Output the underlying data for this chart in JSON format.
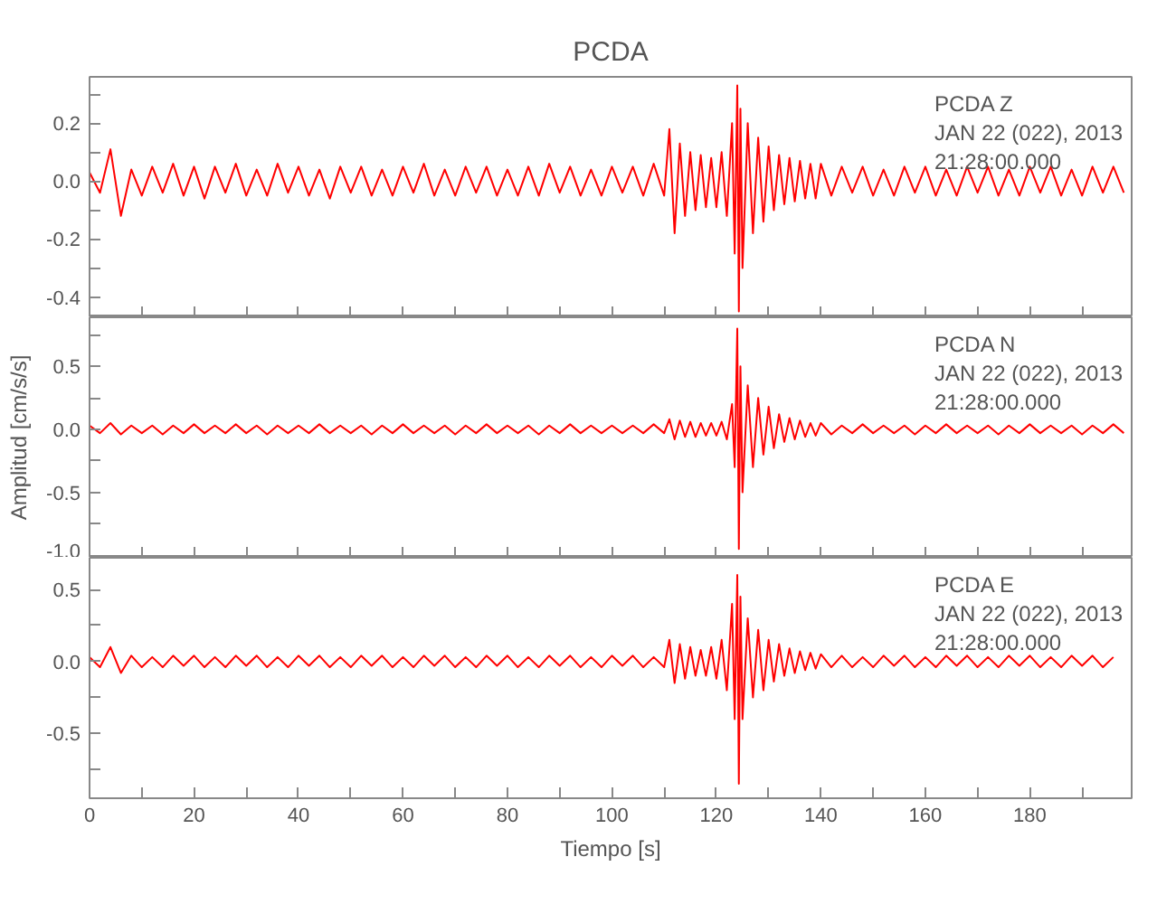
{
  "chart_data": [
    {
      "type": "line",
      "title": "PCDA",
      "x": [
        0,
        2,
        4,
        6,
        8,
        10,
        12,
        14,
        16,
        18,
        20,
        22,
        24,
        26,
        28,
        30,
        32,
        34,
        36,
        38,
        40,
        42,
        44,
        46,
        48,
        50,
        52,
        54,
        56,
        58,
        60,
        62,
        64,
        66,
        68,
        70,
        72,
        74,
        76,
        78,
        80,
        82,
        84,
        86,
        88,
        90,
        92,
        94,
        96,
        98,
        100,
        102,
        104,
        106,
        108,
        110,
        111,
        112,
        113,
        114,
        115,
        116,
        117,
        118,
        119,
        120,
        121,
        122,
        123,
        123.5,
        124,
        124.3,
        124.6,
        125,
        126,
        127,
        128,
        129,
        130,
        131,
        132,
        133,
        134,
        135,
        136,
        137,
        138,
        139,
        140,
        142,
        144,
        146,
        148,
        150,
        152,
        154,
        156,
        158,
        160,
        162,
        164,
        166,
        168,
        170,
        172,
        174,
        176,
        178,
        180,
        182,
        184,
        186,
        188,
        190,
        192,
        194,
        196,
        198
      ],
      "series": [
        {
          "color": "#ff0000",
          "values": [
            0.03,
            -0.04,
            0.11,
            -0.12,
            0.04,
            -0.05,
            0.05,
            -0.04,
            0.06,
            -0.05,
            0.05,
            -0.06,
            0.05,
            -0.04,
            0.06,
            -0.05,
            0.04,
            -0.05,
            0.06,
            -0.04,
            0.05,
            -0.05,
            0.04,
            -0.06,
            0.05,
            -0.04,
            0.05,
            -0.05,
            0.04,
            -0.05,
            0.05,
            -0.04,
            0.06,
            -0.05,
            0.04,
            -0.05,
            0.05,
            -0.04,
            0.05,
            -0.05,
            0.04,
            -0.05,
            0.05,
            -0.05,
            0.06,
            -0.04,
            0.05,
            -0.05,
            0.04,
            -0.05,
            0.05,
            -0.04,
            0.05,
            -0.05,
            0.06,
            -0.05,
            0.18,
            -0.18,
            0.13,
            -0.12,
            0.1,
            -0.1,
            0.09,
            -0.09,
            0.08,
            -0.09,
            0.1,
            -0.12,
            0.2,
            -0.25,
            0.33,
            -0.45,
            0.25,
            -0.3,
            0.2,
            -0.18,
            0.15,
            -0.14,
            0.12,
            -0.1,
            0.09,
            -0.08,
            0.08,
            -0.07,
            0.07,
            -0.06,
            0.06,
            -0.06,
            0.06,
            -0.05,
            0.05,
            -0.04,
            0.05,
            -0.05,
            0.04,
            -0.05,
            0.05,
            -0.04,
            0.05,
            -0.05,
            0.04,
            -0.05,
            0.05,
            -0.04,
            0.05,
            -0.05,
            0.04,
            -0.05,
            0.05,
            -0.04,
            0.05,
            -0.05,
            0.04,
            -0.05,
            0.05,
            -0.04,
            0.05,
            -0.04
          ]
        }
      ],
      "xlim": [
        0,
        199.5
      ],
      "xticks": [
        0,
        {
          "value": 10,
          "label": null
        },
        20,
        {
          "value": 30,
          "label": null
        },
        40,
        {
          "value": 50,
          "label": null
        },
        60,
        {
          "value": 70,
          "label": null
        },
        80,
        {
          "value": 90,
          "label": null
        },
        100,
        {
          "value": 110,
          "label": null
        },
        120,
        {
          "value": 130,
          "label": null
        },
        140,
        {
          "value": 150,
          "label": null
        },
        160,
        {
          "value": 170,
          "label": null
        },
        180,
        {
          "value": 190,
          "label": null
        }
      ],
      "ylim": [
        -0.47,
        0.36
      ],
      "yticks": [
        -0.4,
        {
          "value": -0.3,
          "label": null
        },
        -0.2,
        {
          "value": -0.1,
          "label": null
        },
        {
          "value": 0,
          "label": "0.0"
        },
        {
          "value": 0.1,
          "label": null
        },
        0.2,
        {
          "value": 0.3,
          "label": null
        }
      ],
      "tick_labels": "y",
      "annotations": [
        "PCDA   Z",
        "JAN 22 (022), 2013",
        "21:28:00.000"
      ]
    },
    {
      "type": "line",
      "ylabel": "Amplitud [cm/s/s]",
      "x": [
        0,
        2,
        4,
        6,
        8,
        10,
        12,
        14,
        16,
        18,
        20,
        22,
        24,
        26,
        28,
        30,
        32,
        34,
        36,
        38,
        40,
        42,
        44,
        46,
        48,
        50,
        52,
        54,
        56,
        58,
        60,
        62,
        64,
        66,
        68,
        70,
        72,
        74,
        76,
        78,
        80,
        82,
        84,
        86,
        88,
        90,
        92,
        94,
        96,
        98,
        100,
        102,
        104,
        106,
        108,
        110,
        111,
        112,
        113,
        114,
        115,
        116,
        117,
        118,
        119,
        120,
        121,
        122,
        123,
        123.5,
        124,
        124.3,
        124.6,
        125,
        126,
        127,
        128,
        129,
        130,
        131,
        132,
        133,
        134,
        135,
        136,
        137,
        138,
        139,
        140,
        142,
        144,
        146,
        148,
        150,
        152,
        154,
        156,
        158,
        160,
        162,
        164,
        166,
        168,
        170,
        172,
        174,
        176,
        178,
        180,
        182,
        184,
        186,
        188,
        190,
        192,
        194,
        196,
        198
      ],
      "series": [
        {
          "color": "#ff0000",
          "values": [
            0.03,
            -0.03,
            0.05,
            -0.04,
            0.03,
            -0.03,
            0.03,
            -0.04,
            0.03,
            -0.03,
            0.04,
            -0.03,
            0.03,
            -0.03,
            0.04,
            -0.03,
            0.03,
            -0.04,
            0.03,
            -0.03,
            0.03,
            -0.03,
            0.04,
            -0.03,
            0.03,
            -0.03,
            0.03,
            -0.04,
            0.03,
            -0.03,
            0.04,
            -0.03,
            0.03,
            -0.03,
            0.03,
            -0.04,
            0.03,
            -0.03,
            0.04,
            -0.03,
            0.03,
            -0.03,
            0.03,
            -0.04,
            0.03,
            -0.03,
            0.04,
            -0.03,
            0.03,
            -0.03,
            0.03,
            -0.03,
            0.03,
            -0.03,
            0.04,
            -0.03,
            0.08,
            -0.08,
            0.07,
            -0.06,
            0.06,
            -0.06,
            0.05,
            -0.05,
            0.05,
            -0.05,
            0.06,
            -0.08,
            0.2,
            -0.3,
            0.8,
            -0.95,
            0.5,
            -0.5,
            0.35,
            -0.3,
            0.25,
            -0.2,
            0.18,
            -0.15,
            0.12,
            -0.1,
            0.09,
            -0.08,
            0.07,
            -0.06,
            0.05,
            -0.05,
            0.05,
            -0.04,
            0.03,
            -0.03,
            0.04,
            -0.03,
            0.03,
            -0.03,
            0.03,
            -0.04,
            0.03,
            -0.03,
            0.04,
            -0.03,
            0.03,
            -0.03,
            0.03,
            -0.04,
            0.03,
            -0.03,
            0.04,
            -0.03,
            0.03,
            -0.03,
            0.03,
            -0.04,
            0.03,
            -0.03,
            0.04,
            -0.03
          ]
        }
      ],
      "xlim": [
        0,
        199.5
      ],
      "xticks": [
        0,
        {
          "value": 10,
          "label": null
        },
        20,
        {
          "value": 30,
          "label": null
        },
        40,
        {
          "value": 50,
          "label": null
        },
        60,
        {
          "value": 70,
          "label": null
        },
        80,
        {
          "value": 90,
          "label": null
        },
        100,
        {
          "value": 110,
          "label": null
        },
        120,
        {
          "value": 130,
          "label": null
        },
        140,
        {
          "value": 150,
          "label": null
        },
        160,
        {
          "value": 170,
          "label": null
        },
        180,
        {
          "value": 190,
          "label": null
        }
      ],
      "ylim": [
        -1.02,
        0.89
      ],
      "yticks": [
        {
          "value": -1,
          "label": "-1.0"
        },
        {
          "value": -0.75,
          "label": null
        },
        -0.5,
        {
          "value": -0.25,
          "label": null
        },
        {
          "value": 0,
          "label": "0.0"
        },
        {
          "value": 0.25,
          "label": null
        },
        0.5,
        {
          "value": 0.75,
          "label": null
        }
      ],
      "tick_labels": "y",
      "annotations": [
        "PCDA   N",
        "JAN 22 (022), 2013",
        "21:28:00.000"
      ]
    },
    {
      "type": "line",
      "xlabel": "Tiempo [s]",
      "series": [
        {
          "color": "#ff0000",
          "x": [
            0,
            2,
            4,
            6,
            8,
            10,
            12,
            14,
            16,
            18,
            20,
            22,
            24,
            26,
            28,
            30,
            32,
            34,
            36,
            38,
            40,
            42,
            44,
            46,
            48,
            50,
            52,
            54,
            56,
            58,
            60,
            62,
            64,
            66,
            68,
            70,
            72,
            74,
            76,
            78,
            80,
            82,
            84,
            86,
            88,
            90,
            92,
            94,
            96,
            98,
            100,
            102,
            104,
            106,
            108,
            110,
            111,
            112,
            113,
            114,
            115,
            116,
            117,
            118,
            119,
            120,
            121,
            122,
            123,
            123.5,
            124,
            124.3,
            124.6,
            125,
            126,
            127,
            128,
            129,
            130,
            131,
            132,
            133,
            134,
            135,
            136,
            137,
            138,
            139,
            140,
            142,
            144,
            146,
            148,
            150,
            152,
            154,
            156,
            158,
            160,
            162,
            164,
            166,
            168,
            170,
            172,
            174,
            176,
            178,
            180,
            182,
            184,
            186,
            188,
            190,
            192,
            194,
            196
          ],
          "values": [
            0.03,
            -0.04,
            0.1,
            -0.08,
            0.04,
            -0.04,
            0.03,
            -0.04,
            0.04,
            -0.03,
            0.04,
            -0.04,
            0.03,
            -0.04,
            0.04,
            -0.03,
            0.04,
            -0.04,
            0.03,
            -0.04,
            0.04,
            -0.03,
            0.04,
            -0.04,
            0.03,
            -0.04,
            0.04,
            -0.03,
            0.04,
            -0.04,
            0.03,
            -0.04,
            0.04,
            -0.03,
            0.04,
            -0.04,
            0.03,
            -0.04,
            0.04,
            -0.03,
            0.04,
            -0.04,
            0.03,
            -0.04,
            0.04,
            -0.03,
            0.04,
            -0.04,
            0.03,
            -0.04,
            0.04,
            -0.03,
            0.04,
            -0.04,
            0.03,
            -0.04,
            0.15,
            -0.15,
            0.12,
            -0.12,
            0.1,
            -0.1,
            0.08,
            -0.1,
            0.1,
            -0.12,
            0.15,
            -0.2,
            0.4,
            -0.4,
            0.6,
            -0.85,
            0.45,
            -0.4,
            0.3,
            -0.25,
            0.22,
            -0.2,
            0.15,
            -0.14,
            0.12,
            -0.1,
            0.09,
            -0.08,
            0.07,
            -0.06,
            0.06,
            -0.05,
            0.05,
            -0.04,
            0.04,
            -0.04,
            0.03,
            -0.04,
            0.04,
            -0.03,
            0.04,
            -0.04,
            0.03,
            -0.04,
            0.04,
            -0.03,
            0.04,
            -0.04,
            0.03,
            -0.04,
            0.04,
            -0.03,
            0.04,
            -0.04,
            0.03,
            -0.04,
            0.04,
            -0.03,
            0.04,
            -0.04,
            0.03
          ]
        }
      ],
      "xlim": [
        0,
        199.5
      ],
      "xticks": [
        0,
        {
          "value": 10,
          "label": null
        },
        20,
        {
          "value": 30,
          "label": null
        },
        40,
        {
          "value": 50,
          "label": null
        },
        60,
        {
          "value": 70,
          "label": null
        },
        80,
        {
          "value": 90,
          "label": null
        },
        100,
        {
          "value": 110,
          "label": null
        },
        120,
        {
          "value": 130,
          "label": null
        },
        140,
        {
          "value": 150,
          "label": null
        },
        160,
        {
          "value": 170,
          "label": null
        },
        180,
        {
          "value": 190,
          "label": null
        }
      ],
      "ylim": [
        -0.95,
        0.72
      ],
      "yticks": [
        {
          "value": -0.75,
          "label": null
        },
        -0.5,
        {
          "value": -0.25,
          "label": null
        },
        {
          "value": 0,
          "label": "0.0"
        },
        {
          "value": 0.25,
          "label": null
        },
        0.5
      ],
      "annotations": [
        "PCDA   E",
        "JAN 22 (022), 2013",
        "21:28:00.000"
      ]
    }
  ]
}
